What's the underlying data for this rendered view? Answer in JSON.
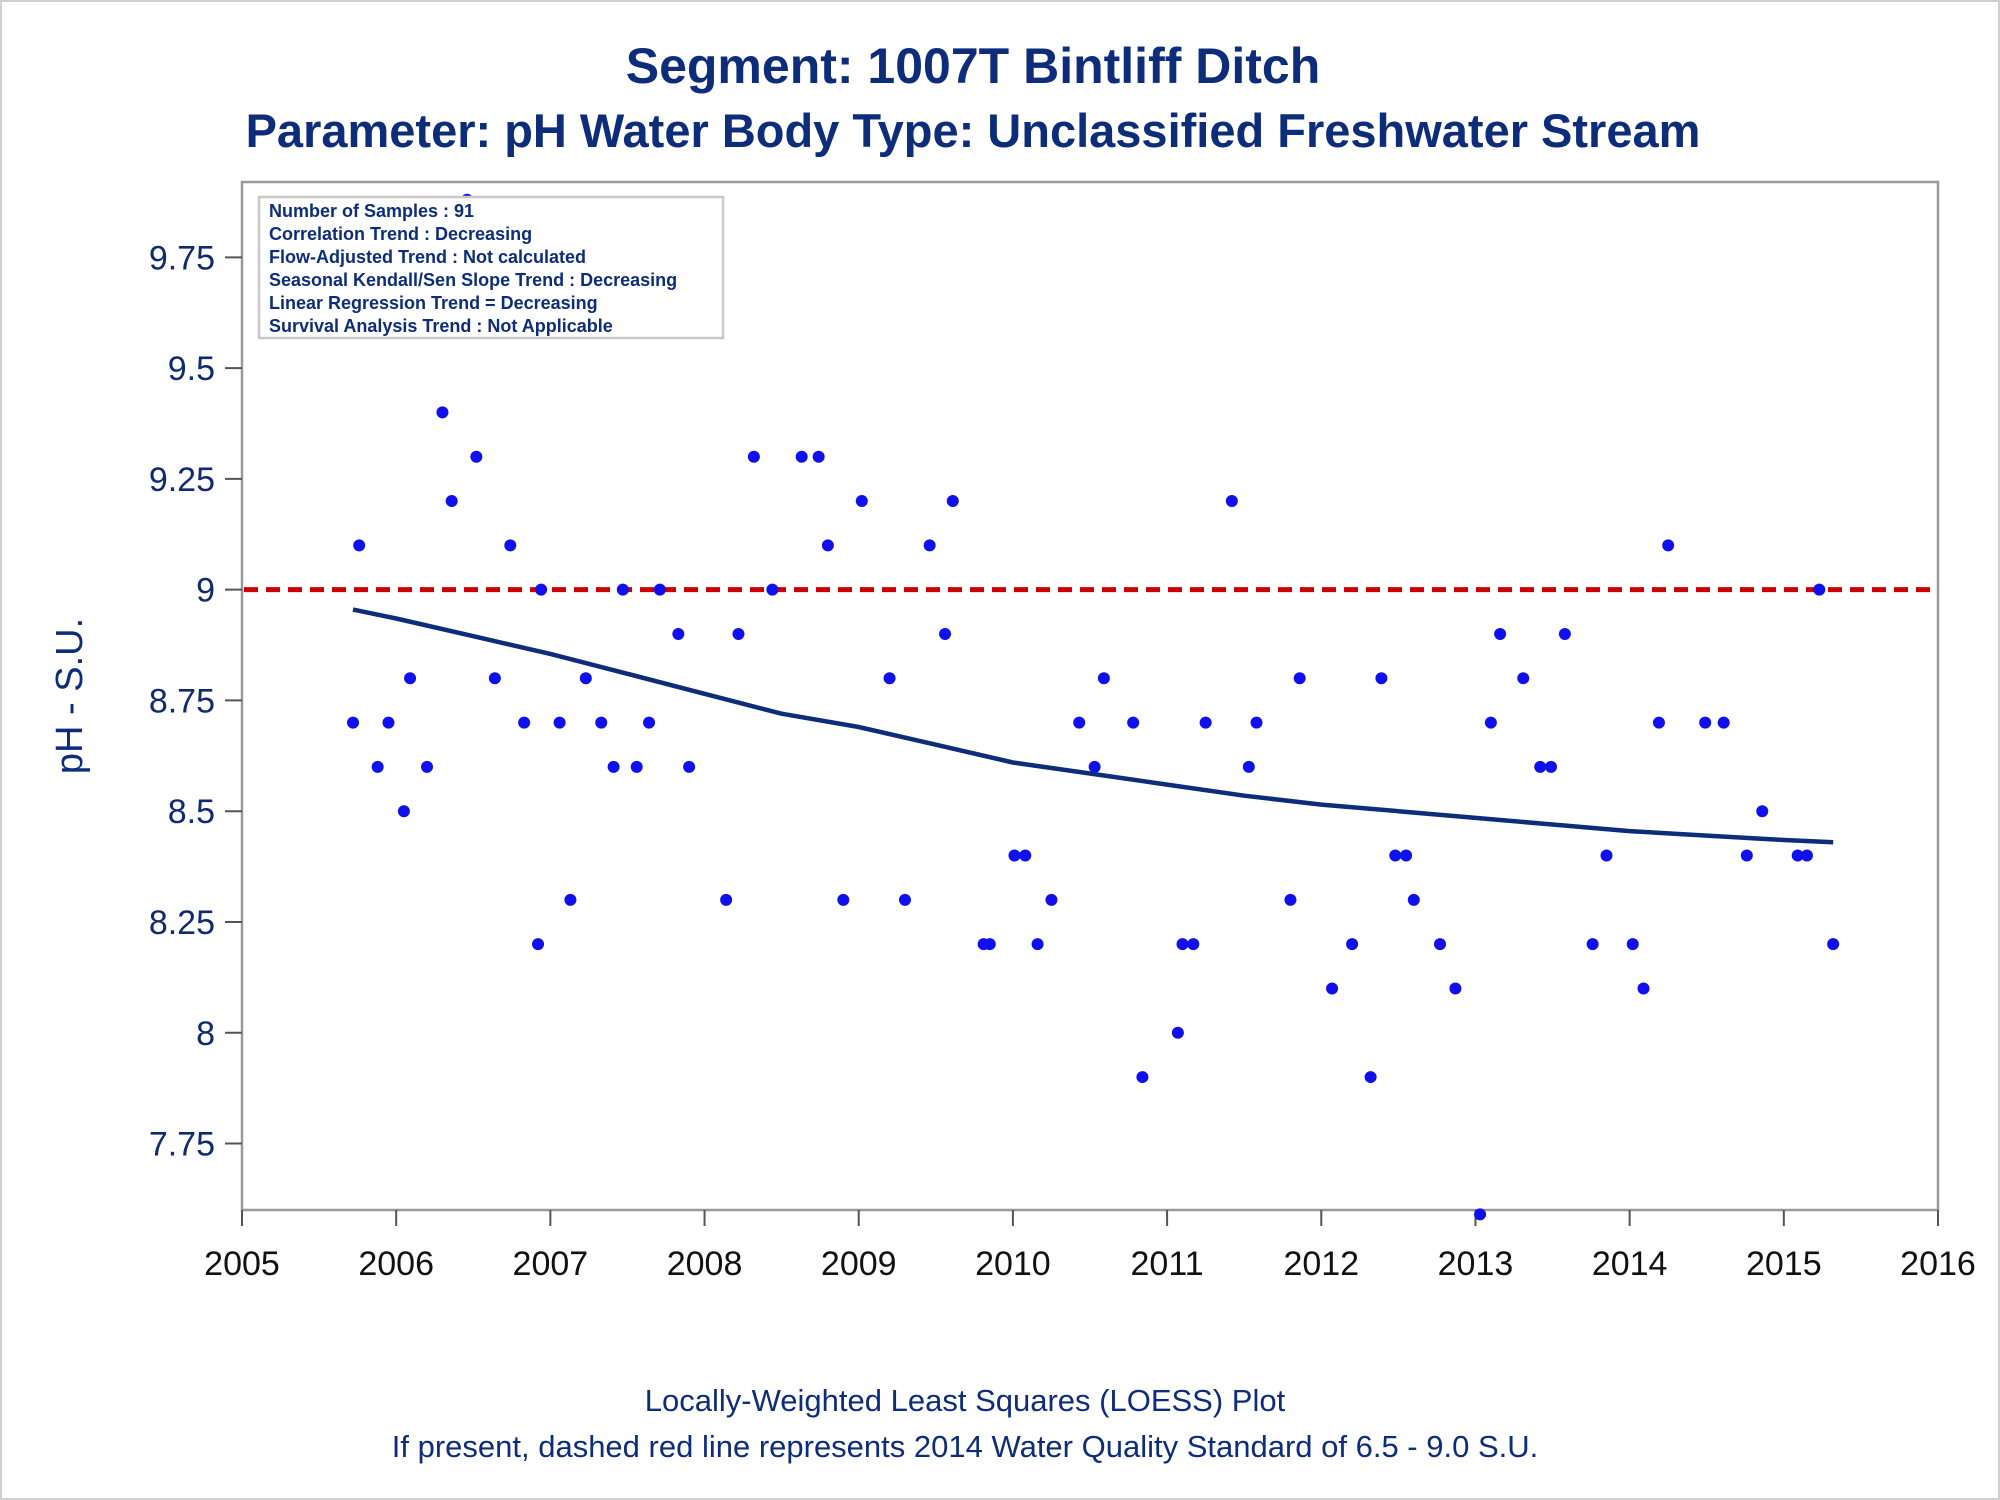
{
  "chart_data": {
    "type": "scatter",
    "title": "Segment: 1007T  Bintliff Ditch",
    "subtitle": "Parameter: pH   Water Body Type: Unclassified Freshwater Stream",
    "xlabel": "",
    "ylabel": "pH - S.U.",
    "xlim": [
      2005,
      2016
    ],
    "ylim": [
      7.6,
      9.92
    ],
    "x_ticks": [
      "2005",
      "2006",
      "2007",
      "2008",
      "2009",
      "2010",
      "2011",
      "2012",
      "2013",
      "2014",
      "2015",
      "2016"
    ],
    "y_ticks": [
      "7.75",
      "8",
      "8.25",
      "8.5",
      "8.75",
      "9",
      "9.25",
      "9.5",
      "9.75"
    ],
    "grid": false,
    "stats_box": {
      "lines": [
        "Number of Samples : 91",
        "Correlation Trend : Decreasing",
        "Flow-Adjusted Trend : Not calculated",
        "Seasonal Kendall/Sen Slope Trend : Decreasing",
        "Linear Regression Trend = Decreasing",
        "Survival Analysis Trend : Not Applicable"
      ],
      "placement": "top-left"
    },
    "reference_line": {
      "y": 9.0,
      "color": "#cc0000",
      "style": "dashed"
    },
    "colors": {
      "points": "#1010ee",
      "loess": "#0d2c7a",
      "text": "#0d2c7a"
    },
    "series": [
      {
        "type": "scatter",
        "points": [
          [
            2005.72,
            8.7
          ],
          [
            2005.76,
            9.1
          ],
          [
            2005.88,
            8.6
          ],
          [
            2005.95,
            8.7
          ],
          [
            2006.05,
            8.5
          ],
          [
            2006.09,
            8.8
          ],
          [
            2006.2,
            8.6
          ],
          [
            2006.3,
            9.4
          ],
          [
            2006.36,
            9.2
          ],
          [
            2006.46,
            9.88
          ],
          [
            2006.52,
            9.3
          ],
          [
            2006.64,
            8.8
          ],
          [
            2006.74,
            9.1
          ],
          [
            2006.83,
            8.7
          ],
          [
            2006.92,
            8.2
          ],
          [
            2006.94,
            9.0
          ],
          [
            2007.06,
            8.7
          ],
          [
            2007.13,
            8.3
          ],
          [
            2007.23,
            8.8
          ],
          [
            2007.33,
            8.7
          ],
          [
            2007.41,
            8.6
          ],
          [
            2007.47,
            9.0
          ],
          [
            2007.56,
            8.6
          ],
          [
            2007.64,
            8.7
          ],
          [
            2007.71,
            9.0
          ],
          [
            2007.83,
            8.9
          ],
          [
            2007.9,
            8.6
          ],
          [
            2008.14,
            8.3
          ],
          [
            2008.22,
            8.9
          ],
          [
            2008.32,
            9.3
          ],
          [
            2008.44,
            9.0
          ],
          [
            2008.63,
            9.3
          ],
          [
            2008.74,
            9.3
          ],
          [
            2008.8,
            9.1
          ],
          [
            2008.9,
            8.3
          ],
          [
            2009.02,
            9.2
          ],
          [
            2009.2,
            8.8
          ],
          [
            2009.3,
            8.3
          ],
          [
            2009.46,
            9.1
          ],
          [
            2009.56,
            8.9
          ],
          [
            2009.61,
            9.2
          ],
          [
            2009.81,
            8.2
          ],
          [
            2009.85,
            8.2
          ],
          [
            2010.01,
            8.4
          ],
          [
            2010.08,
            8.4
          ],
          [
            2010.16,
            8.2
          ],
          [
            2010.25,
            8.3
          ],
          [
            2010.43,
            8.7
          ],
          [
            2010.53,
            8.6
          ],
          [
            2010.59,
            8.8
          ],
          [
            2010.78,
            8.7
          ],
          [
            2010.84,
            7.9
          ],
          [
            2011.07,
            8.0
          ],
          [
            2011.1,
            8.2
          ],
          [
            2011.17,
            8.2
          ],
          [
            2011.25,
            8.7
          ],
          [
            2011.42,
            9.2
          ],
          [
            2011.53,
            8.6
          ],
          [
            2011.58,
            8.7
          ],
          [
            2011.8,
            8.3
          ],
          [
            2011.86,
            8.8
          ],
          [
            2012.07,
            8.1
          ],
          [
            2012.2,
            8.2
          ],
          [
            2012.32,
            7.9
          ],
          [
            2012.39,
            8.8
          ],
          [
            2012.48,
            8.4
          ],
          [
            2012.55,
            8.4
          ],
          [
            2012.6,
            8.3
          ],
          [
            2012.77,
            8.2
          ],
          [
            2012.87,
            8.1
          ],
          [
            2013.03,
            7.59
          ],
          [
            2013.1,
            8.7
          ],
          [
            2013.16,
            8.9
          ],
          [
            2013.31,
            8.8
          ],
          [
            2013.42,
            8.6
          ],
          [
            2013.49,
            8.6
          ],
          [
            2013.58,
            8.9
          ],
          [
            2013.76,
            8.2
          ],
          [
            2013.85,
            8.4
          ],
          [
            2014.02,
            8.2
          ],
          [
            2014.09,
            8.1
          ],
          [
            2014.19,
            8.7
          ],
          [
            2014.25,
            9.1
          ],
          [
            2014.49,
            8.7
          ],
          [
            2014.61,
            8.7
          ],
          [
            2014.76,
            8.4
          ],
          [
            2014.86,
            8.5
          ],
          [
            2015.09,
            8.4
          ],
          [
            2015.15,
            8.4
          ],
          [
            2015.23,
            9.0
          ],
          [
            2015.32,
            8.2
          ]
        ]
      },
      {
        "type": "line",
        "points": [
          [
            2005.72,
            8.955
          ],
          [
            2006.0,
            8.935
          ],
          [
            2006.5,
            8.895
          ],
          [
            2007.0,
            8.855
          ],
          [
            2007.5,
            8.81
          ],
          [
            2008.0,
            8.765
          ],
          [
            2008.5,
            8.72
          ],
          [
            2009.0,
            8.69
          ],
          [
            2009.5,
            8.65
          ],
          [
            2010.0,
            8.61
          ],
          [
            2010.5,
            8.585
          ],
          [
            2011.0,
            8.56
          ],
          [
            2011.5,
            8.535
          ],
          [
            2012.0,
            8.515
          ],
          [
            2012.5,
            8.5
          ],
          [
            2013.0,
            8.485
          ],
          [
            2013.5,
            8.47
          ],
          [
            2014.0,
            8.455
          ],
          [
            2014.5,
            8.445
          ],
          [
            2015.0,
            8.435
          ],
          [
            2015.32,
            8.43
          ]
        ]
      }
    ]
  },
  "footer": {
    "line1": "Locally-Weighted Least Squares (LOESS) Plot",
    "line2": "If present, dashed red line represents 2014 Water Quality Standard of 6.5 - 9.0 S.U."
  }
}
